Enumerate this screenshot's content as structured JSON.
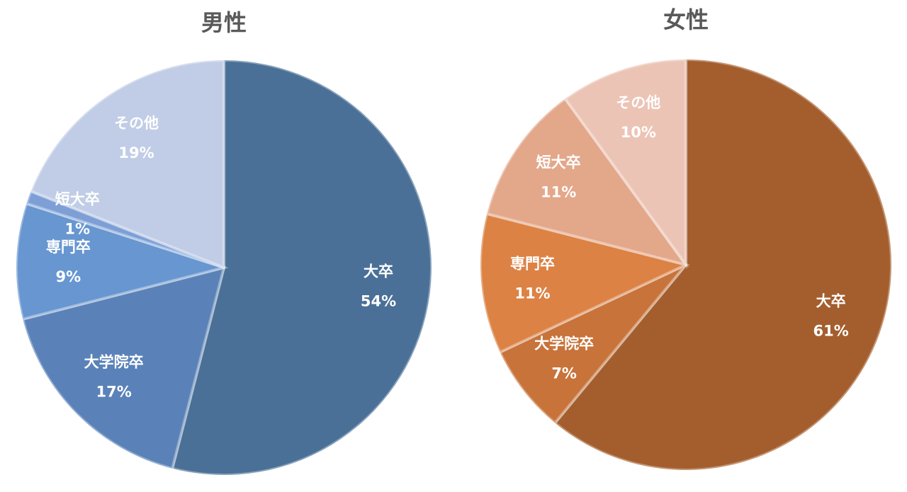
{
  "chart_data": [
    {
      "type": "pie",
      "title": "男性",
      "categories": [
        "大卒",
        "大学院卒",
        "専門卒",
        "短大卒",
        "その他"
      ],
      "values": [
        54,
        17,
        9,
        1,
        19
      ],
      "value_labels": [
        "54%",
        "17%",
        "9%",
        "1%",
        "19%"
      ],
      "colors": [
        "#4a7097",
        "#5a82b8",
        "#6796d0",
        "#7d9fd6",
        "#c1cde6"
      ]
    },
    {
      "type": "pie",
      "title": "女性",
      "categories": [
        "大卒",
        "大学院卒",
        "専門卒",
        "短大卒",
        "その他"
      ],
      "values": [
        61,
        7,
        11,
        11,
        10
      ],
      "value_labels": [
        "61%",
        "7%",
        "11%",
        "11%",
        "10%"
      ],
      "colors": [
        "#a45e2d",
        "#c8733a",
        "#dc8244",
        "#e3a78a",
        "#ecc4b5"
      ]
    }
  ]
}
